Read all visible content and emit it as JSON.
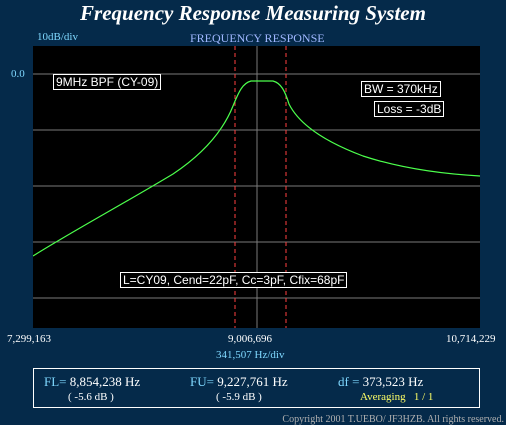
{
  "window": {
    "title": "Frequency Response Measuring System"
  },
  "plot": {
    "y_scale": "10dB/div",
    "header": "FREQUENCY RESPONSE",
    "y_top": "0.0",
    "x_left": "7,299,163",
    "x_center": "9,006,696",
    "x_right": "10,714,229",
    "x_scale": "341,507  Hz/div",
    "annotations": {
      "filter_name": "9MHz BPF (CY-09)",
      "bandwidth": "BW = 370kHz",
      "loss": "Loss = -3dB",
      "params": "L=CY09, Cend=22pF, Cc=3pF, Cfix=68pF"
    },
    "colors": {
      "trace": "#4cff4c",
      "markers": "#ff4040",
      "grid": "#7a7a7a",
      "background": "#000000"
    }
  },
  "status": {
    "fl_label": "FL=",
    "fl_value": "8,854,238  Hz",
    "fl_db": "( -5.6 dB )",
    "fu_label": "FU=",
    "fu_value": "9,227,761  Hz",
    "fu_db": "( -5.9 dB )",
    "df_label": "df =",
    "df_value": "373,523  Hz",
    "averaging_label": "Averaging",
    "averaging_value": "1 / 1"
  },
  "footer": {
    "copyright": "Copyright 2001 T.UEBO/ JF3HZB. All rights reserved."
  }
}
